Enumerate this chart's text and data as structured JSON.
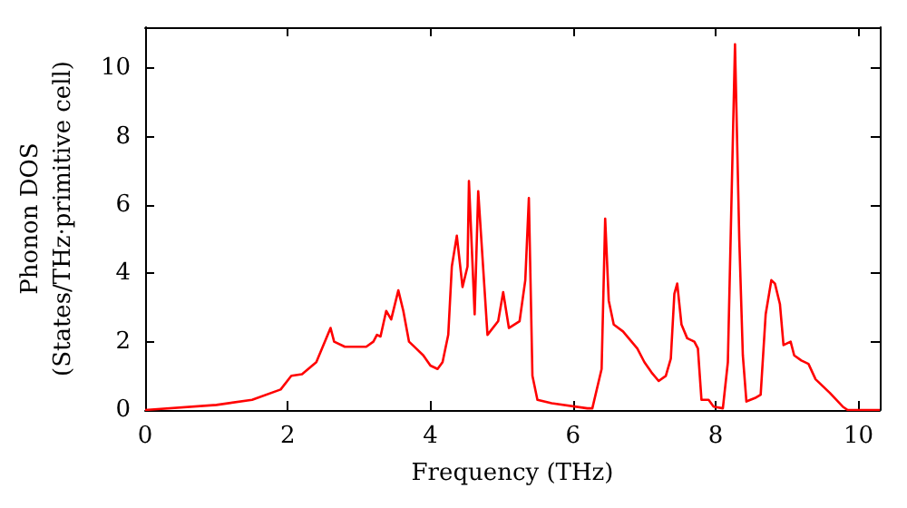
{
  "chart_data": {
    "type": "line",
    "xlabel": "Frequency (THz)",
    "ylabel": "Phonon DOS\n(States/THz·primitive cell)",
    "x": [
      0,
      1,
      1.5,
      1.9,
      2.05,
      2.2,
      2.4,
      2.6,
      2.65,
      2.8,
      3.1,
      3.2,
      3.25,
      3.3,
      3.38,
      3.45,
      3.55,
      3.62,
      3.7,
      3.8,
      3.9,
      4.0,
      4.1,
      4.17,
      4.25,
      4.3,
      4.37,
      4.45,
      4.52,
      4.54,
      4.62,
      4.67,
      4.8,
      4.95,
      5.02,
      5.1,
      5.25,
      5.33,
      5.38,
      5.43,
      5.5,
      5.7,
      6.2,
      6.27,
      6.4,
      6.45,
      6.5,
      6.57,
      6.7,
      6.9,
      7.0,
      7.1,
      7.2,
      7.3,
      7.37,
      7.42,
      7.46,
      7.52,
      7.6,
      7.7,
      7.75,
      7.8,
      7.9,
      7.97,
      8.1,
      8.17,
      8.27,
      8.33,
      8.38,
      8.43,
      8.55,
      8.63,
      8.7,
      8.78,
      8.83,
      8.9,
      8.95,
      9.05,
      9.1,
      9.2,
      9.3,
      9.4,
      9.6,
      9.78,
      9.85,
      10.3
    ],
    "series": [
      {
        "color": "#ff0000",
        "values": [
          0,
          0.15,
          0.3,
          0.6,
          1.0,
          1.05,
          1.4,
          2.4,
          2.0,
          1.85,
          1.85,
          2.0,
          2.2,
          2.15,
          2.9,
          2.65,
          3.5,
          2.9,
          2.0,
          1.8,
          1.6,
          1.3,
          1.2,
          1.4,
          2.2,
          4.2,
          5.1,
          3.6,
          4.2,
          6.7,
          2.8,
          6.4,
          2.2,
          2.6,
          3.45,
          2.4,
          2.6,
          3.8,
          6.2,
          1.0,
          0.3,
          0.2,
          0.05,
          0.05,
          1.2,
          5.6,
          3.2,
          2.5,
          2.3,
          1.8,
          1.4,
          1.1,
          0.85,
          1.0,
          1.5,
          3.4,
          3.7,
          2.5,
          2.1,
          2.0,
          1.8,
          0.3,
          0.3,
          0.1,
          0.05,
          1.4,
          10.7,
          5.0,
          1.6,
          0.25,
          0.35,
          0.45,
          2.8,
          3.8,
          3.7,
          3.1,
          1.9,
          2.0,
          1.6,
          1.45,
          1.35,
          0.9,
          0.5,
          0.1,
          0,
          0
        ]
      }
    ],
    "xlim": [
      0,
      10.3
    ],
    "ylim": [
      0,
      11.2
    ],
    "xticks": [
      0,
      2,
      4,
      6,
      8,
      10
    ],
    "yticks": [
      0,
      2,
      4,
      6,
      8,
      10
    ],
    "grid": false,
    "marker": "none",
    "line_style": "solid"
  }
}
